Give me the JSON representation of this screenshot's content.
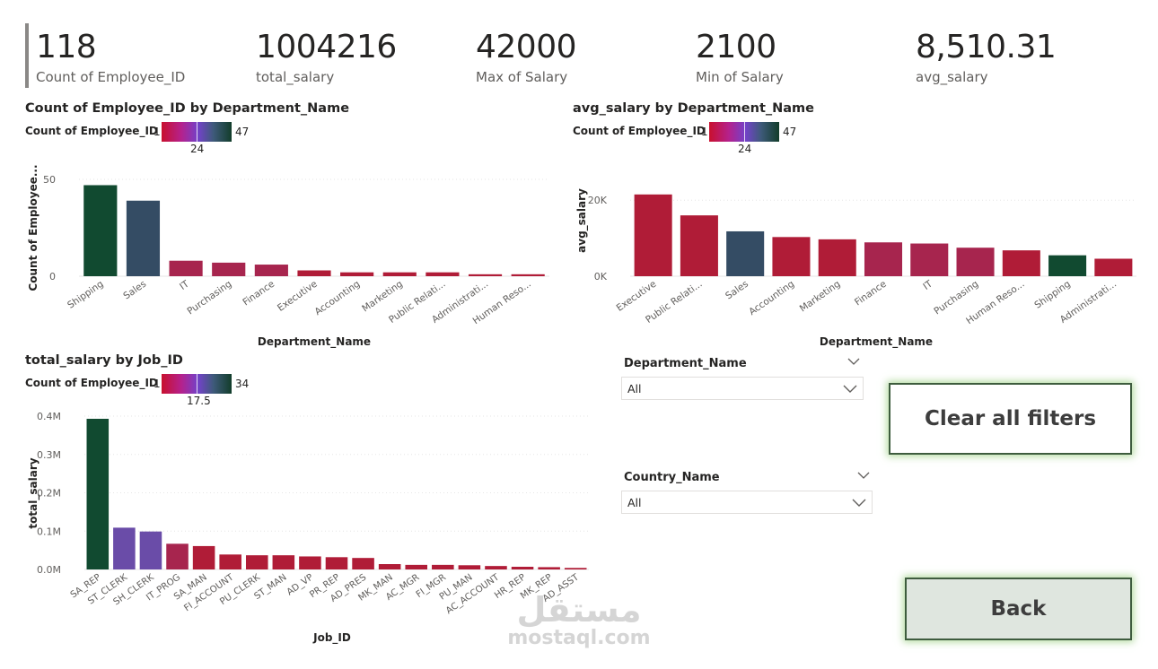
{
  "kpis": [
    {
      "value": "118",
      "label": "Count of Employee_ID"
    },
    {
      "value": "1004216",
      "label": "total_salary"
    },
    {
      "value": "42000",
      "label": "Max of Salary"
    },
    {
      "value": "2100",
      "label": "Min of Salary"
    },
    {
      "value": "8,510.31",
      "label": "avg_salary"
    }
  ],
  "charts": {
    "dept_count": {
      "title": "Count of Employee_ID by Department_Name",
      "legend": {
        "label": "Count of Employee_ID",
        "min": "1",
        "mid": "24",
        "max": "47"
      }
    },
    "dept_avg": {
      "title": "avg_salary by Department_Name",
      "legend": {
        "label": "Count of Employee_ID",
        "min": "1",
        "mid": "24",
        "max": "47"
      }
    },
    "job_total": {
      "title": "total_salary by Job_ID",
      "legend": {
        "label": "Count of Employee_ID",
        "min": "1",
        "mid": "17.5",
        "max": "34"
      }
    }
  },
  "chart_data": [
    {
      "type": "bar",
      "title": "Count of Employee_ID by Department_Name",
      "xlabel": "Department_Name",
      "ylabel": "Count of Employee...",
      "ylim": [
        0,
        50
      ],
      "yticks": [
        0,
        50
      ],
      "ytick_labels": [
        "0",
        "50"
      ],
      "categories": [
        "Shipping",
        "Sales",
        "IT",
        "Purchasing",
        "Finance",
        "Executive",
        "Accounting",
        "Marketing",
        "Public Relati...",
        "Administrati...",
        "Human Reso..."
      ],
      "values": [
        47,
        39,
        8,
        7,
        6,
        3,
        2,
        2,
        2,
        1,
        1
      ],
      "colors": [
        "#114a30",
        "#344c64",
        "#a7254e",
        "#a7254e",
        "#a7254e",
        "#b01c37",
        "#b01c37",
        "#b01c37",
        "#b01c37",
        "#b01c37",
        "#b01c37"
      ]
    },
    {
      "type": "bar",
      "title": "avg_salary by Department_Name",
      "xlabel": "Department_Name",
      "ylabel": "avg_salary",
      "ylim": [
        0,
        25000
      ],
      "yticks": [
        0,
        20000
      ],
      "ytick_labels": [
        "0K",
        "20K"
      ],
      "categories": [
        "Executive",
        "Public Relati...",
        "Sales",
        "Accounting",
        "Marketing",
        "Finance",
        "IT",
        "Purchasing",
        "Human Reso...",
        "Shipping",
        "Administrati..."
      ],
      "values": [
        21500,
        16000,
        11800,
        10300,
        9700,
        8900,
        8600,
        7500,
        6800,
        5500,
        4600
      ],
      "colors": [
        "#b01c37",
        "#b01c37",
        "#344c64",
        "#b01c37",
        "#b01c37",
        "#a7254e",
        "#a7254e",
        "#a7254e",
        "#b01c37",
        "#114a30",
        "#b01c37"
      ]
    },
    {
      "type": "bar",
      "title": "total_salary by Job_ID",
      "xlabel": "Job_ID",
      "ylabel": "total_salary",
      "ylim": [
        0,
        400000
      ],
      "yticks": [
        0,
        100000,
        200000,
        300000,
        400000
      ],
      "ytick_labels": [
        "0.0M",
        "0.1M",
        "0.2M",
        "0.3M",
        "0.4M"
      ],
      "categories": [
        "SA_REP",
        "ST_CLERK",
        "SH_CLERK",
        "IT_PROG",
        "SA_MAN",
        "FI_ACCOUNT",
        "PU_CLERK",
        "ST_MAN",
        "AD_VP",
        "PR_REP",
        "AD_PRES",
        "MK_MAN",
        "AC_MGR",
        "FI_MGR",
        "PU_MAN",
        "AC_ACCOUNT",
        "HR_REP",
        "MK_REP",
        "AD_ASST"
      ],
      "values": [
        393000,
        109000,
        99000,
        67000,
        61000,
        39000,
        37000,
        37000,
        34000,
        32000,
        30000,
        14000,
        12000,
        12000,
        11000,
        9000,
        7000,
        6000,
        4000
      ],
      "colors": [
        "#114a30",
        "#6a4ca8",
        "#6a4ca8",
        "#a7254e",
        "#b01c37",
        "#b01c37",
        "#b01c37",
        "#b01c37",
        "#b01c37",
        "#b01c37",
        "#b01c37",
        "#b01c37",
        "#b01c37",
        "#b01c37",
        "#b01c37",
        "#b01c37",
        "#b01c37",
        "#b01c37",
        "#b01c37"
      ]
    }
  ],
  "slicers": {
    "department": {
      "title": "Department_Name",
      "value": "All"
    },
    "country": {
      "title": "Country_Name",
      "value": "All"
    }
  },
  "buttons": {
    "clear": "Clear all filters",
    "back": "Back"
  },
  "watermark": {
    "arabic": "مستقل",
    "latin": "mostaql.com"
  },
  "icons": [
    "chevron-down-icon"
  ],
  "colors": {
    "accent_dark_green": "#114a30",
    "slate": "#344c64",
    "crimson": "#b01c37",
    "magenta": "#a7254e",
    "purple": "#6a4ca8",
    "button_border": "#3e5c3e",
    "button_fill": "#dfe6df"
  }
}
